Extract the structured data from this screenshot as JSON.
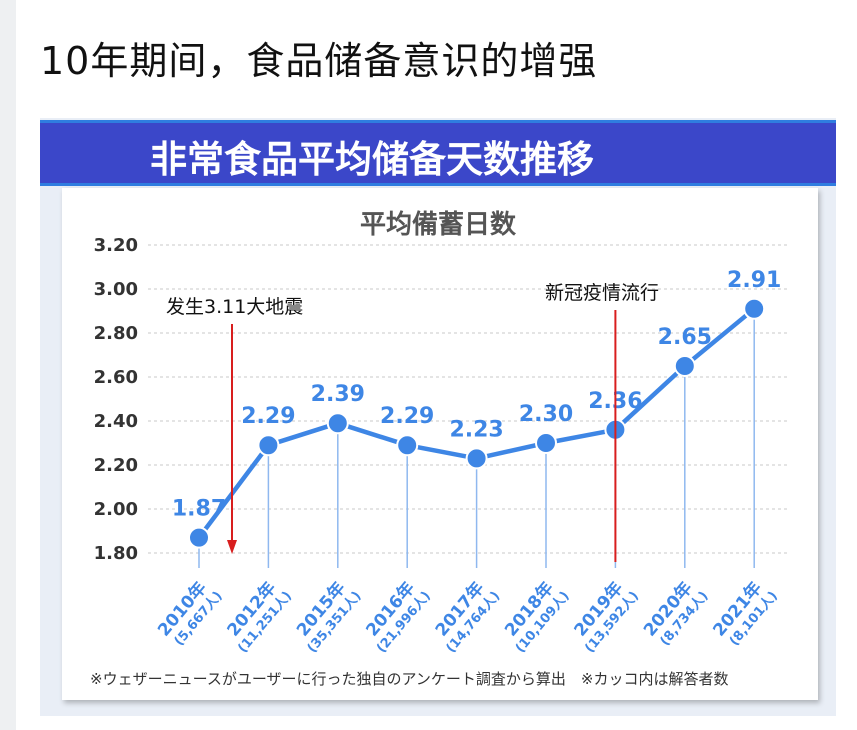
{
  "page": {
    "title": "10年期间，食品储备意识的增强"
  },
  "banner": {
    "title": "非常食品平均储备天数推移"
  },
  "footnote": "※ウェザーニュースがユーザーに行った独自のアンケート調査から算出　※カッコ内は解答者数",
  "annotations": [
    {
      "text": "发生3.11大地震",
      "category": "2010年",
      "arrow": "down"
    },
    {
      "text": "新冠疫情流行",
      "category": "2019年",
      "arrow": "line"
    }
  ],
  "colors": {
    "accent": "#3e86e5",
    "banner": "#3b47c9",
    "arrow": "#d81e1e"
  },
  "chart_data": {
    "type": "line",
    "title": "平均備蓄日数",
    "categories": [
      "2010年",
      "2012年",
      "2015年",
      "2016年",
      "2017年",
      "2018年",
      "2019年",
      "2020年",
      "2021年"
    ],
    "sublabels": [
      "(5,667人)",
      "(11,251人)",
      "(35,351人)",
      "(21,996人)",
      "(14,764人)",
      "(10,109人)",
      "(13,592人)",
      "(8,734人)",
      "(8,101人)"
    ],
    "series": [
      {
        "values": [
          1.87,
          2.29,
          2.39,
          2.29,
          2.23,
          2.3,
          2.36,
          2.65,
          2.91
        ],
        "labels": [
          "1.87",
          "2.29",
          "2.39",
          "2.29",
          "2.23",
          "2.30",
          "2.36",
          "2.65",
          "2.91"
        ]
      }
    ],
    "yticks": [
      "3.20",
      "3.00",
      "2.80",
      "2.60",
      "2.40",
      "2.20",
      "2.00",
      "1.80"
    ],
    "ylim": [
      1.8,
      3.2
    ],
    "grid": true
  }
}
